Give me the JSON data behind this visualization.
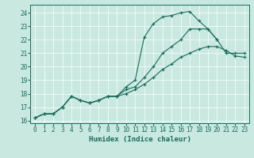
{
  "xlabel": "Humidex (Indice chaleur)",
  "background_color": "#c8e8e0",
  "grid_color": "#ffffff",
  "line_color": "#1a6b5a",
  "xlim": [
    -0.5,
    23.5
  ],
  "ylim": [
    15.8,
    24.6
  ],
  "xticks": [
    0,
    1,
    2,
    3,
    4,
    5,
    6,
    7,
    8,
    9,
    10,
    11,
    12,
    13,
    14,
    15,
    16,
    17,
    18,
    19,
    20,
    21,
    22,
    23
  ],
  "yticks": [
    16,
    17,
    18,
    19,
    20,
    21,
    22,
    23,
    24
  ],
  "lines": [
    {
      "x": [
        0,
        1,
        2,
        3,
        4,
        5,
        6,
        7,
        8,
        9,
        10,
        11,
        12,
        13,
        14,
        15,
        16,
        17,
        18,
        19,
        20
      ],
      "y": [
        16.2,
        16.5,
        16.5,
        17.0,
        17.8,
        17.5,
        17.3,
        17.5,
        17.8,
        17.8,
        18.5,
        19.0,
        22.2,
        23.2,
        23.7,
        23.8,
        24.0,
        24.1,
        23.4,
        22.8,
        22.0
      ]
    },
    {
      "x": [
        0,
        1,
        2,
        3,
        4,
        5,
        6,
        7,
        8,
        9,
        10,
        11,
        12,
        13,
        14,
        15,
        16,
        17,
        18,
        19,
        20,
        21,
        22,
        23
      ],
      "y": [
        16.2,
        16.5,
        16.5,
        17.0,
        17.8,
        17.5,
        17.3,
        17.5,
        17.8,
        17.8,
        18.3,
        18.5,
        19.2,
        20.0,
        21.0,
        21.5,
        22.0,
        22.8,
        22.8,
        22.8,
        22.0,
        21.0,
        21.0,
        21.0
      ]
    },
    {
      "x": [
        0,
        1,
        2,
        3,
        4,
        5,
        6,
        7,
        8,
        9,
        10,
        11,
        12,
        13,
        14,
        15,
        16,
        17,
        18,
        19,
        20,
        21,
        22,
        23
      ],
      "y": [
        16.2,
        16.5,
        16.5,
        17.0,
        17.8,
        17.5,
        17.3,
        17.5,
        17.8,
        17.8,
        18.0,
        18.3,
        18.7,
        19.2,
        19.8,
        20.2,
        20.7,
        21.0,
        21.3,
        21.5,
        21.5,
        21.2,
        20.8,
        20.7
      ]
    }
  ]
}
